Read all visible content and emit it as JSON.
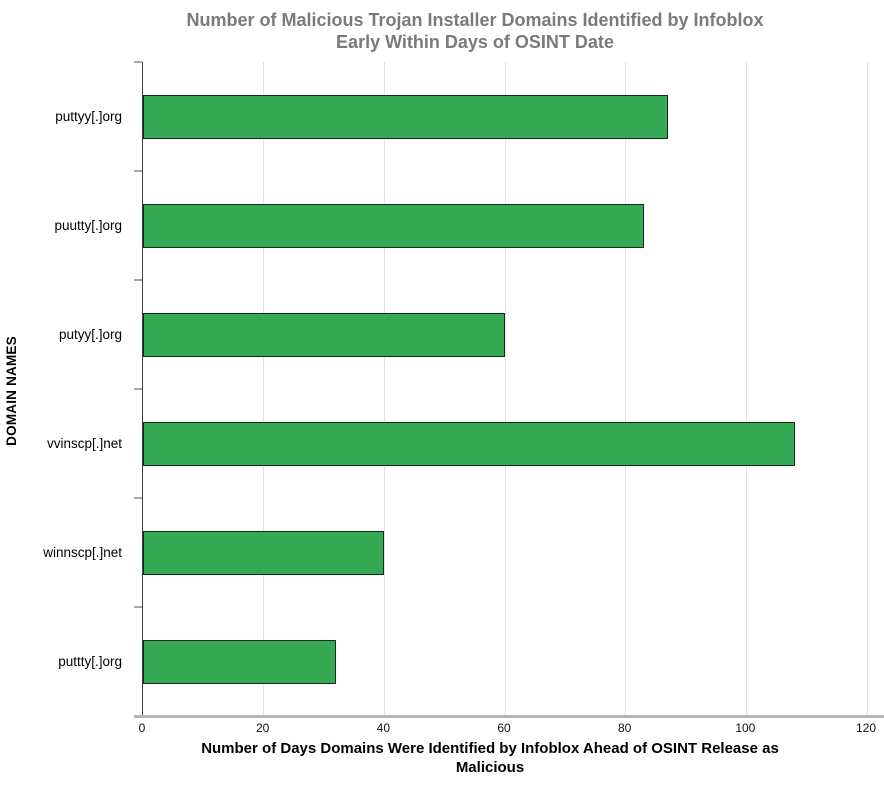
{
  "chart_data": {
    "type": "bar",
    "orientation": "horizontal",
    "title": "Number of Malicious Trojan Installer Domains Identified by Infoblox Early Within Days of OSINT Date",
    "title_lines": [
      "Number of Malicious Trojan Installer Domains Identified by Infoblox",
      "Early Within Days of OSINT Date"
    ],
    "categories": [
      "puttyy[.]org",
      "puutty[.]org",
      "putyy[.]org",
      "vvinscp[.]net",
      "winnscp[.]net",
      "puttty[.]org"
    ],
    "values": [
      87,
      83,
      60,
      108,
      40,
      32
    ],
    "xlabel": "Number of Days Domains Were Identified by Infoblox Ahead of OSINT Release as Malicious",
    "xlabel_lines": [
      "Number of Days Domains Were Identified by Infoblox Ahead of OSINT Release as",
      "Malicious"
    ],
    "ylabel": "DOMAIN NAMES",
    "xlim": [
      0,
      120
    ],
    "xticks": [
      0,
      20,
      40,
      60,
      80,
      100,
      120
    ],
    "grid": "vertical-only",
    "legend_position": "none",
    "colors": {
      "bar_fill": "#34a853",
      "bar_border": "#0f2e18",
      "title_text": "#7a7a7a",
      "axis_text": "#000000",
      "gridline": "#e2e2e2",
      "y_axis_line": "#3d3d3d",
      "x_axis_line": "#b4b4b4",
      "background": "#ffffff"
    }
  }
}
